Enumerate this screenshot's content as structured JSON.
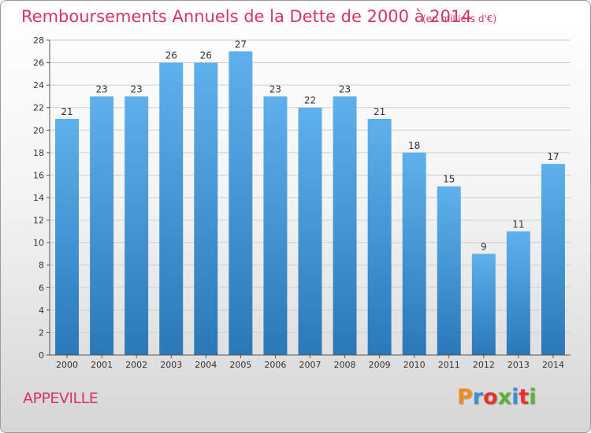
{
  "chart_data": {
    "type": "bar",
    "title": "Remboursements Annuels de la Dette de 2000 à 2014",
    "subtitle": "(en milliers d'€)",
    "xlabel": "",
    "ylabel": "",
    "categories": [
      "2000",
      "2001",
      "2002",
      "2003",
      "2004",
      "2005",
      "2006",
      "2007",
      "2008",
      "2009",
      "2010",
      "2011",
      "2012",
      "2013",
      "2014"
    ],
    "values": [
      21,
      23,
      23,
      26,
      26,
      27,
      23,
      22,
      23,
      21,
      18,
      15,
      9,
      11,
      17
    ],
    "ylim": [
      0,
      28
    ],
    "yticks": [
      0,
      2,
      4,
      6,
      8,
      10,
      12,
      14,
      16,
      18,
      20,
      22,
      24,
      26,
      28
    ],
    "grid": true,
    "data_labels": true,
    "colors": {
      "bar_top": "#5eb1ec",
      "bar_bottom": "#2a78ba",
      "title": "#d6336c",
      "grid": "#cfcfcf",
      "axis_text": "#333333"
    }
  },
  "footer": {
    "place_name": "APPEVILLE",
    "logo_text": "Proxiti",
    "logo_colors": [
      "#f28c1e",
      "#3a8fd9",
      "#e9302f",
      "#5bb336",
      "#3a8fd9",
      "#e9302f",
      "#5bb336"
    ]
  }
}
